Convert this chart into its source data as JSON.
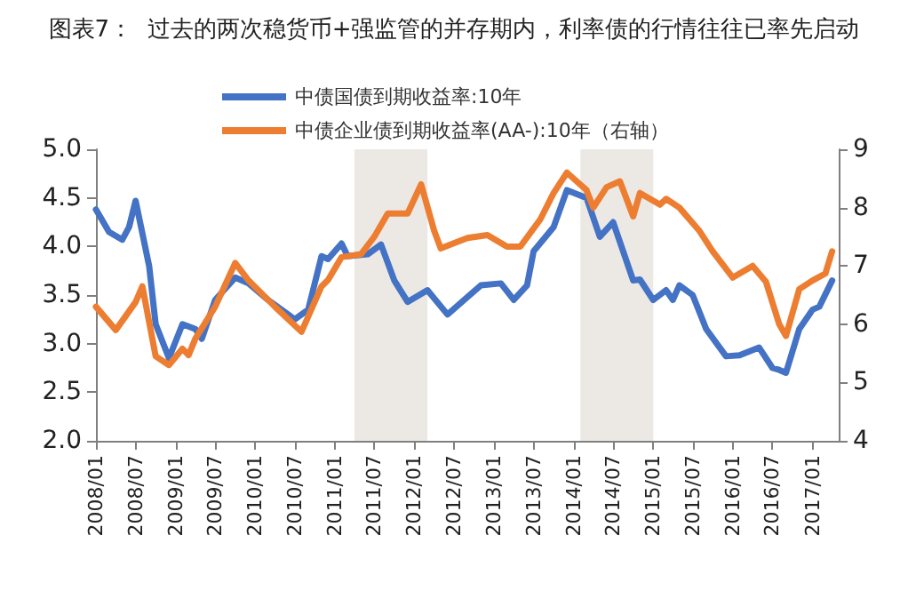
{
  "chart_data": {
    "type": "line",
    "title": "图表7：  过去的两次稳货币+强监管的并存期内，利率债的行情往往已率先启动",
    "legend": "top",
    "grid": false,
    "marker": "none",
    "line_style": "solid",
    "xlim": [
      "2008-01",
      "2017-05"
    ],
    "xticks": [
      {
        "value": "2008-01",
        "label": "2008/01"
      },
      {
        "value": "2008-07",
        "label": "2008/07"
      },
      {
        "value": "2009-01",
        "label": "2009/01"
      },
      {
        "value": "2009-07",
        "label": "2009/07"
      },
      {
        "value": "2010-01",
        "label": "2010/01"
      },
      {
        "value": "2010-07",
        "label": "2010/07"
      },
      {
        "value": "2011-01",
        "label": "2011/01"
      },
      {
        "value": "2011-07",
        "label": "2011/07"
      },
      {
        "value": "2012-01",
        "label": "2012/01"
      },
      {
        "value": "2012-07",
        "label": "2012/07"
      },
      {
        "value": "2013-01",
        "label": "2013/01"
      },
      {
        "value": "2013-07",
        "label": "2013/07"
      },
      {
        "value": "2014-01",
        "label": "2014/01"
      },
      {
        "value": "2014-07",
        "label": "2014/07"
      },
      {
        "value": "2015-01",
        "label": "2015/01"
      },
      {
        "value": "2015-07",
        "label": "2015/07"
      },
      {
        "value": "2016-01",
        "label": "2016/01"
      },
      {
        "value": "2016-07",
        "label": "2016/07"
      },
      {
        "value": "2017-01",
        "label": "2017/01"
      }
    ],
    "ylim": [
      2,
      5
    ],
    "yticks": [
      {
        "value": 2,
        "label": "2.0"
      },
      {
        "value": 2.5,
        "label": "2.5"
      },
      {
        "value": 3,
        "label": "3.0"
      },
      {
        "value": 3.5,
        "label": "3.5"
      },
      {
        "value": 4,
        "label": "4.0"
      },
      {
        "value": 4.5,
        "label": "4.5"
      },
      {
        "value": 5,
        "label": "5.0"
      }
    ],
    "y2lim": [
      4,
      9
    ],
    "y2ticks": [
      4,
      5,
      6,
      7,
      8,
      9
    ],
    "bands": [
      {
        "axis": "x",
        "from": "2011-04",
        "to": "2012-03",
        "color": "#ece9e4"
      },
      {
        "axis": "x",
        "from": "2014-02",
        "to": "2015-01",
        "color": "#ece9e4"
      }
    ],
    "series": [
      {
        "name": "中债国债到期收益率:10年",
        "color": "#4472c4",
        "x": [
          "2008-01",
          "2008-03",
          "2008-05",
          "2008-06",
          "2008-07",
          "2008-09",
          "2008-10",
          "2008-12",
          "2009-02",
          "2009-04",
          "2009-05",
          "2009-07",
          "2009-10",
          "2009-12",
          "2010-03",
          "2010-06",
          "2010-07",
          "2010-09",
          "2010-11",
          "2010-12",
          "2011-02",
          "2011-03",
          "2011-06",
          "2011-08",
          "2011-10",
          "2011-12",
          "2012-03",
          "2012-06",
          "2012-09",
          "2012-11",
          "2013-02",
          "2013-04",
          "2013-06",
          "2013-07",
          "2013-10",
          "2013-12",
          "2014-03",
          "2014-05",
          "2014-07",
          "2014-10",
          "2014-11",
          "2015-01",
          "2015-03",
          "2015-04",
          "2015-05",
          "2015-07",
          "2015-09",
          "2015-12",
          "2016-02",
          "2016-05",
          "2016-07",
          "2016-08",
          "2016-09",
          "2016-11",
          "2017-01",
          "2017-02",
          "2017-04"
        ],
        "values": [
          4.38,
          4.15,
          4.07,
          4.2,
          4.47,
          3.8,
          3.2,
          2.85,
          3.2,
          3.15,
          3.05,
          3.45,
          3.68,
          3.62,
          3.45,
          3.3,
          3.25,
          3.35,
          3.9,
          3.87,
          4.03,
          3.9,
          3.92,
          4.02,
          3.65,
          3.43,
          3.55,
          3.3,
          3.48,
          3.6,
          3.62,
          3.45,
          3.6,
          3.95,
          4.2,
          4.58,
          4.5,
          4.1,
          4.25,
          3.65,
          3.66,
          3.45,
          3.55,
          3.45,
          3.6,
          3.5,
          3.15,
          2.87,
          2.88,
          2.96,
          2.75,
          2.73,
          2.7,
          3.15,
          3.35,
          3.38,
          3.65
        ]
      },
      {
        "name": "中债企业债到期收益率(AA-):10年（右轴）",
        "color": "#ed7d31",
        "axis": "y2",
        "x": [
          "2008-01",
          "2008-04",
          "2008-07",
          "2008-08",
          "2008-10",
          "2008-12",
          "2009-02",
          "2009-03",
          "2009-04",
          "2009-07",
          "2009-10",
          "2009-12",
          "2010-04",
          "2010-08",
          "2010-11",
          "2010-12",
          "2011-02",
          "2011-05",
          "2011-07",
          "2011-09",
          "2011-12",
          "2012-02",
          "2012-04",
          "2012-05",
          "2012-09",
          "2012-12",
          "2013-03",
          "2013-05",
          "2013-08",
          "2013-10",
          "2013-12",
          "2014-03",
          "2014-04",
          "2014-06",
          "2014-08",
          "2014-10",
          "2014-11",
          "2015-02",
          "2015-03",
          "2015-05",
          "2015-08",
          "2015-10",
          "2016-01",
          "2016-04",
          "2016-06",
          "2016-08",
          "2016-09",
          "2016-11",
          "2017-01",
          "2017-03",
          "2017-04"
        ],
        "values": [
          6.3,
          5.9,
          6.38,
          6.65,
          5.45,
          5.3,
          5.58,
          5.47,
          5.75,
          6.3,
          7.05,
          6.75,
          6.3,
          5.87,
          6.65,
          6.76,
          7.15,
          7.2,
          7.5,
          7.9,
          7.9,
          8.4,
          7.6,
          7.3,
          7.48,
          7.53,
          7.33,
          7.33,
          7.8,
          8.25,
          8.6,
          8.3,
          8.0,
          8.35,
          8.45,
          7.85,
          8.25,
          8.05,
          8.15,
          8.0,
          7.6,
          7.25,
          6.8,
          7.0,
          6.73,
          6.0,
          5.8,
          6.6,
          6.75,
          6.87,
          7.25
        ]
      }
    ]
  }
}
